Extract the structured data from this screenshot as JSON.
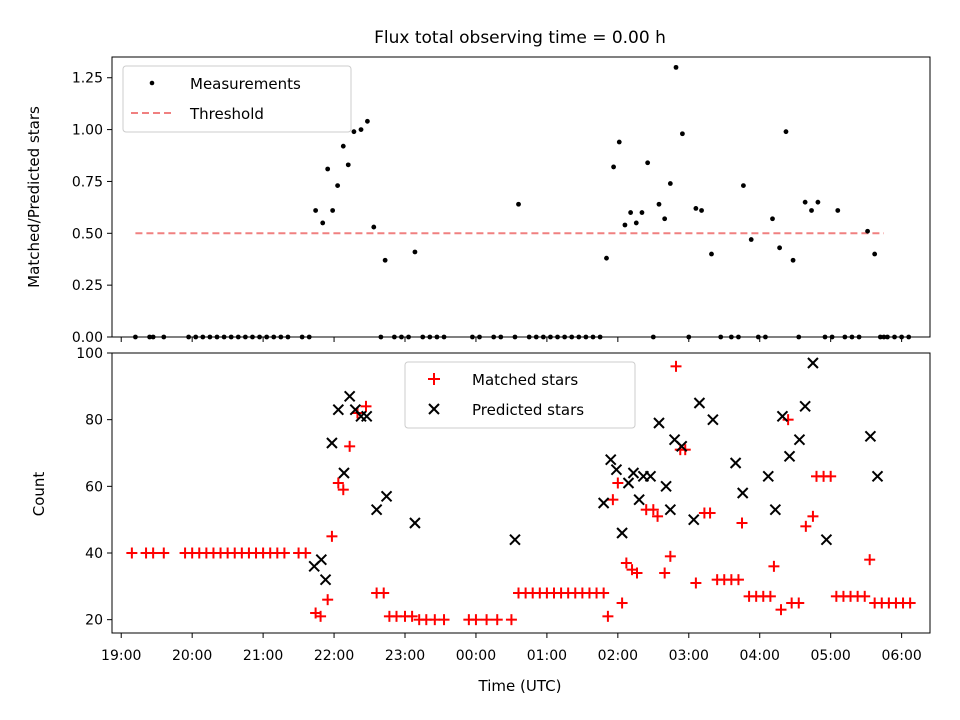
{
  "chart_data": [
    {
      "type": "scatter",
      "title": "Flux total observing time = 0.00 h",
      "xlabel": "",
      "ylabel": "Matched/Predicted stars",
      "xlim": [
        18.87,
        30.4
      ],
      "ylim": [
        0,
        1.35
      ],
      "yticks": [
        "0.00",
        "0.25",
        "0.50",
        "0.75",
        "1.00",
        "1.25"
      ],
      "ytick_values": [
        0,
        0.25,
        0.5,
        0.75,
        1.0,
        1.25
      ],
      "legend": [
        "Measurements",
        "Threshold"
      ],
      "legend_position": "upper-left",
      "threshold": {
        "name": "Threshold",
        "value": 0.5,
        "x_range": [
          19.2,
          29.75
        ],
        "color": "#f08080"
      },
      "measurements_color": "#000000",
      "measurements": [
        [
          19.2,
          0
        ],
        [
          19.4,
          0
        ],
        [
          19.45,
          0
        ],
        [
          19.6,
          0
        ],
        [
          19.95,
          0
        ],
        [
          20.05,
          0
        ],
        [
          20.15,
          0
        ],
        [
          20.25,
          0
        ],
        [
          20.35,
          0
        ],
        [
          20.45,
          0
        ],
        [
          20.55,
          0
        ],
        [
          20.65,
          0
        ],
        [
          20.75,
          0
        ],
        [
          20.85,
          0
        ],
        [
          20.95,
          0
        ],
        [
          21.05,
          0
        ],
        [
          21.15,
          0
        ],
        [
          21.25,
          0
        ],
        [
          21.35,
          0
        ],
        [
          21.55,
          0
        ],
        [
          21.65,
          0
        ],
        [
          21.74,
          0.61
        ],
        [
          21.84,
          0.55
        ],
        [
          21.91,
          0.81
        ],
        [
          21.98,
          0.61
        ],
        [
          22.05,
          0.73
        ],
        [
          22.13,
          0.92
        ],
        [
          22.2,
          0.83
        ],
        [
          22.28,
          0.99
        ],
        [
          22.38,
          1.0
        ],
        [
          22.47,
          1.04
        ],
        [
          22.56,
          0.53
        ],
        [
          22.72,
          0.37
        ],
        [
          23.14,
          0.41
        ],
        [
          22.66,
          0
        ],
        [
          22.85,
          0
        ],
        [
          22.95,
          0
        ],
        [
          23.05,
          0
        ],
        [
          23.25,
          0
        ],
        [
          23.35,
          0
        ],
        [
          23.45,
          0
        ],
        [
          23.55,
          0
        ],
        [
          23.95,
          0
        ],
        [
          24.05,
          0
        ],
        [
          24.25,
          0
        ],
        [
          24.35,
          0
        ],
        [
          24.55,
          0
        ],
        [
          24.75,
          0
        ],
        [
          24.85,
          0
        ],
        [
          24.95,
          0
        ],
        [
          25.05,
          0
        ],
        [
          25.15,
          0
        ],
        [
          25.25,
          0
        ],
        [
          25.35,
          0
        ],
        [
          25.45,
          0
        ],
        [
          25.55,
          0
        ],
        [
          25.65,
          0
        ],
        [
          25.75,
          0
        ],
        [
          24.6,
          0.64
        ],
        [
          25.84,
          0.38
        ],
        [
          25.94,
          0.82
        ],
        [
          26.02,
          0.94
        ],
        [
          26.1,
          0.54
        ],
        [
          26.18,
          0.6
        ],
        [
          26.26,
          0.55
        ],
        [
          26.34,
          0.6
        ],
        [
          26.42,
          0.84
        ],
        [
          26.5,
          0
        ],
        [
          26.58,
          0.64
        ],
        [
          26.66,
          0.57
        ],
        [
          26.74,
          0.74
        ],
        [
          26.82,
          1.3
        ],
        [
          26.91,
          0.98
        ],
        [
          27.0,
          0
        ],
        [
          27.1,
          0.62
        ],
        [
          27.18,
          0.61
        ],
        [
          27.32,
          0.4
        ],
        [
          27.45,
          0
        ],
        [
          27.6,
          0
        ],
        [
          27.7,
          0
        ],
        [
          27.77,
          0.73
        ],
        [
          27.88,
          0.47
        ],
        [
          27.98,
          0
        ],
        [
          28.08,
          0
        ],
        [
          28.18,
          0.57
        ],
        [
          28.28,
          0.43
        ],
        [
          28.37,
          0.99
        ],
        [
          28.47,
          0.37
        ],
        [
          28.55,
          0
        ],
        [
          28.64,
          0.65
        ],
        [
          28.73,
          0.61
        ],
        [
          28.82,
          0.65
        ],
        [
          28.92,
          0
        ],
        [
          29.02,
          0
        ],
        [
          29.1,
          0.61
        ],
        [
          29.2,
          0
        ],
        [
          29.3,
          0
        ],
        [
          29.4,
          0
        ],
        [
          29.52,
          0.51
        ],
        [
          29.62,
          0.4
        ],
        [
          29.7,
          0
        ],
        [
          29.8,
          0
        ],
        [
          29.9,
          0
        ],
        [
          30.0,
          0
        ],
        [
          30.1,
          0
        ],
        [
          29.75,
          0
        ]
      ]
    },
    {
      "type": "scatter",
      "title": "",
      "xlabel": "Time (UTC)",
      "ylabel": "Count",
      "xlim": [
        18.87,
        30.4
      ],
      "ylim": [
        16,
        100
      ],
      "xticks": [
        "19:00",
        "20:00",
        "21:00",
        "22:00",
        "23:00",
        "00:00",
        "01:00",
        "02:00",
        "03:00",
        "04:00",
        "05:00",
        "06:00"
      ],
      "xtick_values": [
        19,
        20,
        21,
        22,
        23,
        24,
        25,
        26,
        27,
        28,
        29,
        30
      ],
      "yticks": [
        "20",
        "40",
        "60",
        "80",
        "100"
      ],
      "ytick_values": [
        20,
        40,
        60,
        80,
        100
      ],
      "legend": [
        "Matched stars",
        "Predicted stars"
      ],
      "legend_position": "upper-center",
      "series": [
        {
          "name": "Matched stars",
          "marker": "+",
          "color": "#ff0000",
          "points": [
            [
              19.15,
              40
            ],
            [
              19.35,
              40
            ],
            [
              19.45,
              40
            ],
            [
              19.6,
              40
            ],
            [
              19.9,
              40
            ],
            [
              20.0,
              40
            ],
            [
              20.1,
              40
            ],
            [
              20.2,
              40
            ],
            [
              20.3,
              40
            ],
            [
              20.4,
              40
            ],
            [
              20.5,
              40
            ],
            [
              20.6,
              40
            ],
            [
              20.7,
              40
            ],
            [
              20.8,
              40
            ],
            [
              20.9,
              40
            ],
            [
              21.0,
              40
            ],
            [
              21.1,
              40
            ],
            [
              21.2,
              40
            ],
            [
              21.3,
              40
            ],
            [
              21.5,
              40
            ],
            [
              21.6,
              40
            ],
            [
              21.74,
              22
            ],
            [
              21.81,
              21
            ],
            [
              21.91,
              26
            ],
            [
              21.97,
              45
            ],
            [
              22.06,
              61
            ],
            [
              22.13,
              59
            ],
            [
              22.22,
              72
            ],
            [
              22.33,
              82
            ],
            [
              22.45,
              84
            ],
            [
              22.6,
              28
            ],
            [
              22.7,
              28
            ],
            [
              22.78,
              21
            ],
            [
              22.88,
              21
            ],
            [
              23.0,
              21
            ],
            [
              23.1,
              21
            ],
            [
              23.2,
              20
            ],
            [
              23.3,
              20
            ],
            [
              23.42,
              20
            ],
            [
              23.55,
              20
            ],
            [
              23.9,
              20
            ],
            [
              24.0,
              20
            ],
            [
              24.15,
              20
            ],
            [
              24.3,
              20
            ],
            [
              24.5,
              20
            ],
            [
              24.6,
              28
            ],
            [
              24.7,
              28
            ],
            [
              24.8,
              28
            ],
            [
              24.9,
              28
            ],
            [
              25.0,
              28
            ],
            [
              25.1,
              28
            ],
            [
              25.2,
              28
            ],
            [
              25.3,
              28
            ],
            [
              25.4,
              28
            ],
            [
              25.5,
              28
            ],
            [
              25.6,
              28
            ],
            [
              25.7,
              28
            ],
            [
              25.8,
              28
            ],
            [
              25.86,
              21
            ],
            [
              25.93,
              56
            ],
            [
              26.0,
              61
            ],
            [
              26.06,
              25
            ],
            [
              26.12,
              37
            ],
            [
              26.2,
              35
            ],
            [
              26.27,
              34
            ],
            [
              26.4,
              53
            ],
            [
              26.5,
              53
            ],
            [
              26.56,
              51
            ],
            [
              26.66,
              34
            ],
            [
              26.74,
              39
            ],
            [
              26.82,
              96
            ],
            [
              26.88,
              71
            ],
            [
              26.95,
              71
            ],
            [
              27.1,
              31
            ],
            [
              27.22,
              52
            ],
            [
              27.3,
              52
            ],
            [
              27.4,
              32
            ],
            [
              27.5,
              32
            ],
            [
              27.6,
              32
            ],
            [
              27.7,
              32
            ],
            [
              27.75,
              49
            ],
            [
              27.85,
              27
            ],
            [
              27.95,
              27
            ],
            [
              28.05,
              27
            ],
            [
              28.15,
              27
            ],
            [
              28.2,
              36
            ],
            [
              28.3,
              23
            ],
            [
              28.4,
              80
            ],
            [
              28.45,
              25
            ],
            [
              28.55,
              25
            ],
            [
              28.65,
              48
            ],
            [
              28.75,
              51
            ],
            [
              28.8,
              63
            ],
            [
              28.9,
              63
            ],
            [
              29.0,
              63
            ],
            [
              29.08,
              27
            ],
            [
              29.18,
              27
            ],
            [
              29.28,
              27
            ],
            [
              29.38,
              27
            ],
            [
              29.48,
              27
            ],
            [
              29.55,
              38
            ],
            [
              29.62,
              25
            ],
            [
              29.72,
              25
            ],
            [
              29.82,
              25
            ],
            [
              29.92,
              25
            ],
            [
              30.02,
              25
            ],
            [
              30.12,
              25
            ]
          ]
        },
        {
          "name": "Predicted stars",
          "marker": "x",
          "color": "#000000",
          "points": [
            [
              21.72,
              36
            ],
            [
              21.82,
              38
            ],
            [
              21.88,
              32
            ],
            [
              21.97,
              73
            ],
            [
              22.06,
              83
            ],
            [
              22.14,
              64
            ],
            [
              22.22,
              87
            ],
            [
              22.3,
              83
            ],
            [
              22.38,
              81
            ],
            [
              22.46,
              81
            ],
            [
              22.6,
              53
            ],
            [
              22.74,
              57
            ],
            [
              23.14,
              49
            ],
            [
              24.55,
              44
            ],
            [
              25.8,
              55
            ],
            [
              25.9,
              68
            ],
            [
              25.98,
              65
            ],
            [
              26.06,
              46
            ],
            [
              26.15,
              61
            ],
            [
              26.22,
              64
            ],
            [
              26.3,
              56
            ],
            [
              26.36,
              63
            ],
            [
              26.46,
              63
            ],
            [
              26.58,
              79
            ],
            [
              26.68,
              60
            ],
            [
              26.74,
              53
            ],
            [
              26.8,
              74
            ],
            [
              26.9,
              72
            ],
            [
              27.07,
              50
            ],
            [
              27.15,
              85
            ],
            [
              27.34,
              80
            ],
            [
              27.66,
              67
            ],
            [
              27.76,
              58
            ],
            [
              28.12,
              63
            ],
            [
              28.22,
              53
            ],
            [
              28.32,
              81
            ],
            [
              28.42,
              69
            ],
            [
              28.56,
              74
            ],
            [
              28.64,
              84
            ],
            [
              28.75,
              97
            ],
            [
              28.94,
              44
            ],
            [
              29.56,
              75
            ],
            [
              29.66,
              63
            ]
          ]
        }
      ]
    }
  ]
}
